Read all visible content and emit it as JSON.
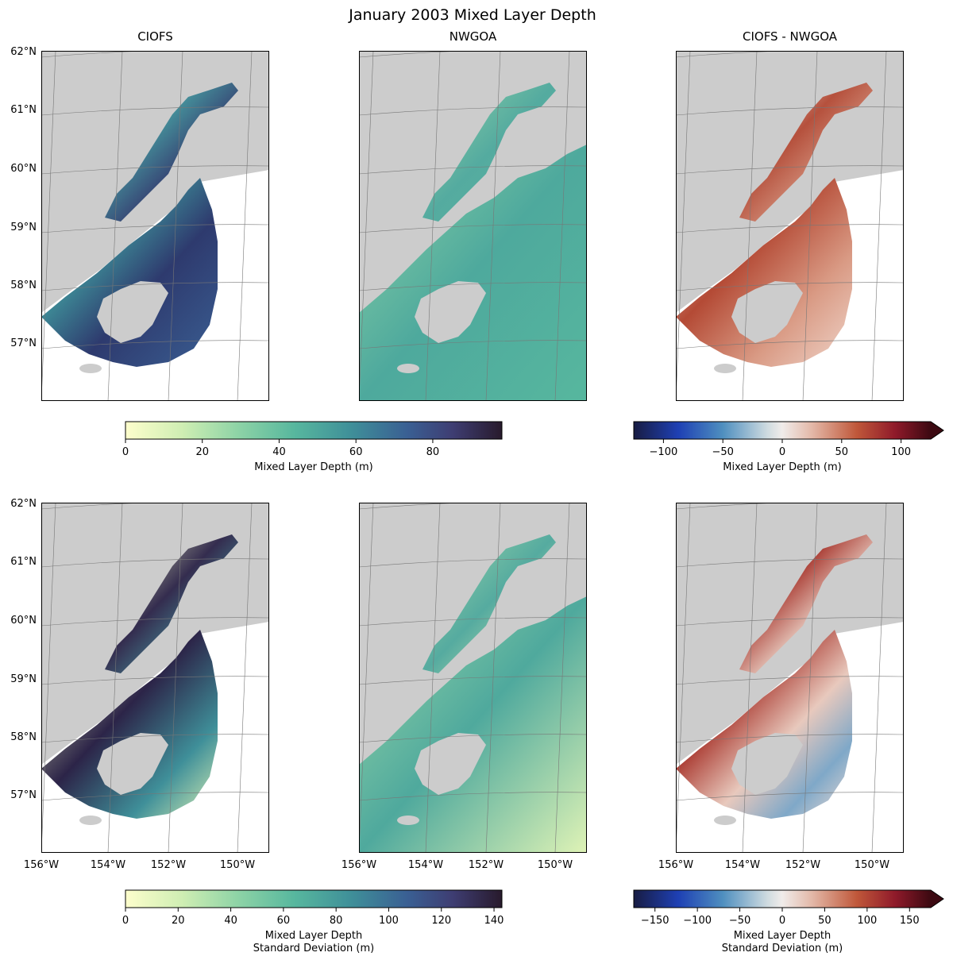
{
  "figure_title": "January 2003 Mixed Layer Depth",
  "colors": {
    "land": "#cccccc",
    "ocean": "#ffffff",
    "grid": "#777777"
  },
  "chart_data": [
    {
      "type": "heatmap",
      "id": "p-r0c0",
      "title": "CIOFS",
      "variable": "mean",
      "lat_ticks": [
        "62°N",
        "61°N",
        "60°N",
        "59°N",
        "58°N",
        "57°N"
      ],
      "lon_ticks": [],
      "colormap": "deep",
      "value_range": [
        0,
        98
      ]
    },
    {
      "type": "heatmap",
      "id": "p-r0c1",
      "title": "NWGOA",
      "variable": "mean",
      "lat_ticks": [],
      "lon_ticks": [],
      "colormap": "deep",
      "value_range": [
        0,
        98
      ]
    },
    {
      "type": "heatmap",
      "id": "p-r0c2",
      "title": "CIOFS - NWGOA",
      "variable": "mean difference",
      "lat_ticks": [],
      "lon_ticks": [],
      "colormap": "balance",
      "value_range": [
        -125,
        125
      ]
    },
    {
      "type": "heatmap",
      "id": "p-r1c0",
      "title": "",
      "variable": "std",
      "lat_ticks": [
        "62°N",
        "61°N",
        "60°N",
        "59°N",
        "58°N",
        "57°N"
      ],
      "lon_ticks": [
        "156°W",
        "154°W",
        "152°W",
        "150°W"
      ],
      "colormap": "deep",
      "value_range": [
        0,
        143
      ]
    },
    {
      "type": "heatmap",
      "id": "p-r1c1",
      "title": "",
      "variable": "std",
      "lat_ticks": [],
      "lon_ticks": [
        "156°W",
        "154°W",
        "152°W",
        "150°W"
      ],
      "colormap": "deep",
      "value_range": [
        0,
        143
      ]
    },
    {
      "type": "heatmap",
      "id": "p-r1c2",
      "title": "",
      "variable": "std difference",
      "lat_ticks": [],
      "lon_ticks": [
        "156°W",
        "154°W",
        "152°W",
        "150°W"
      ],
      "colormap": "balance",
      "value_range": [
        -175,
        175
      ]
    }
  ],
  "colorbars": [
    {
      "id": "cb-mean",
      "colormap": "deep",
      "range": [
        0,
        98
      ],
      "ticks": [
        0,
        20,
        40,
        60,
        80
      ],
      "tick_labels": [
        "0",
        "20",
        "40",
        "60",
        "80"
      ],
      "label": [
        "Mixed Layer Depth (m)"
      ],
      "extend": "neither"
    },
    {
      "id": "cb-mean-diff",
      "colormap": "balance",
      "range": [
        -125,
        125
      ],
      "ticks": [
        -100,
        -50,
        0,
        50,
        100
      ],
      "tick_labels": [
        "−100",
        "−50",
        "0",
        "50",
        "100"
      ],
      "label": [
        "Mixed Layer Depth (m)"
      ],
      "extend": "max"
    },
    {
      "id": "cb-std",
      "colormap": "deep",
      "range": [
        0,
        143
      ],
      "ticks": [
        0,
        20,
        40,
        60,
        80,
        100,
        120,
        140
      ],
      "tick_labels": [
        "0",
        "20",
        "40",
        "60",
        "80",
        "100",
        "120",
        "140"
      ],
      "label": [
        "Mixed Layer Depth",
        "Standard Deviation (m)"
      ],
      "extend": "neither"
    },
    {
      "id": "cb-std-diff",
      "colormap": "balance",
      "range": [
        -175,
        175
      ],
      "ticks": [
        -150,
        -100,
        -50,
        0,
        50,
        100,
        150
      ],
      "tick_labels": [
        "−150",
        "−100",
        "−50",
        "0",
        "50",
        "100",
        "150"
      ],
      "label": [
        "Mixed Layer Depth",
        "Standard Deviation (m)"
      ],
      "extend": "max"
    }
  ]
}
